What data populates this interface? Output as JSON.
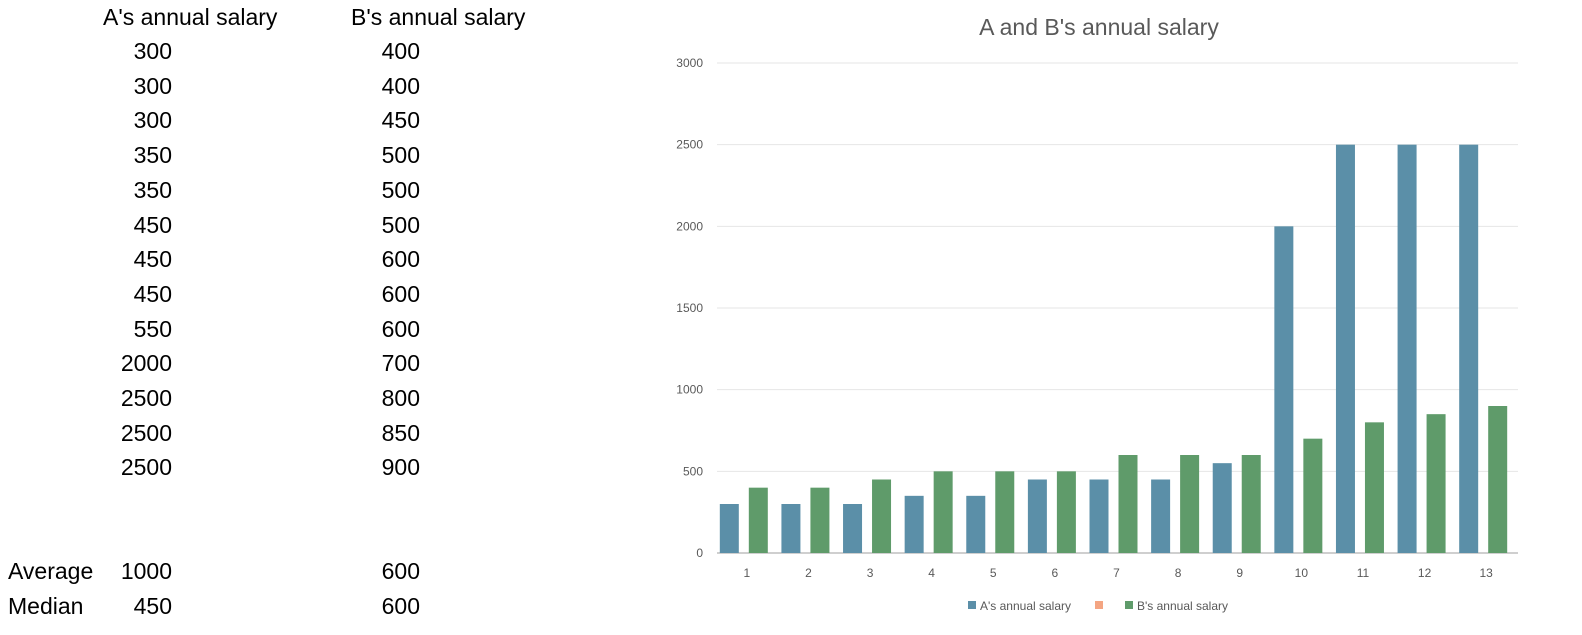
{
  "table": {
    "header_a": "A's annual salary",
    "header_b": "B's annual salary",
    "rows": [
      {
        "a": "300",
        "b": "400"
      },
      {
        "a": "300",
        "b": "400"
      },
      {
        "a": "300",
        "b": "450"
      },
      {
        "a": "350",
        "b": "500"
      },
      {
        "a": "350",
        "b": "500"
      },
      {
        "a": "450",
        "b": "500"
      },
      {
        "a": "450",
        "b": "600"
      },
      {
        "a": "450",
        "b": "600"
      },
      {
        "a": "550",
        "b": "600"
      },
      {
        "a": "2000",
        "b": "700"
      },
      {
        "a": "2500",
        "b": "800"
      },
      {
        "a": "2500",
        "b": "850"
      },
      {
        "a": "2500",
        "b": "900"
      }
    ],
    "stats": [
      {
        "label": "Average",
        "a": "1000",
        "b": "600"
      },
      {
        "label": "Median",
        "a": "450",
        "b": "600"
      }
    ]
  },
  "chart_data": {
    "type": "bar",
    "title": "A and B's annual salary",
    "categories": [
      "1",
      "2",
      "3",
      "4",
      "5",
      "6",
      "7",
      "8",
      "9",
      "10",
      "11",
      "12",
      "13"
    ],
    "series": [
      {
        "name": "A's annual salary",
        "color": "#5b8fa8",
        "values": [
          300,
          300,
          300,
          350,
          350,
          450,
          450,
          450,
          550,
          2000,
          2500,
          2500,
          2500
        ]
      },
      {
        "name": "B's annual salary",
        "color": "#5f9b6a",
        "values": [
          400,
          400,
          450,
          500,
          500,
          500,
          600,
          600,
          600,
          700,
          800,
          850,
          900
        ]
      }
    ],
    "legend": [
      {
        "name": "A's annual salary",
        "color": "#5b8fa8"
      },
      {
        "name": "",
        "color": "#f4a582"
      },
      {
        "name": "B's annual salary",
        "color": "#5f9b6a"
      }
    ],
    "yticks": [
      0,
      500,
      1000,
      1500,
      2000,
      2500,
      3000
    ],
    "ylim": [
      0,
      3000
    ],
    "grid": true,
    "legend_position": "bottom"
  }
}
